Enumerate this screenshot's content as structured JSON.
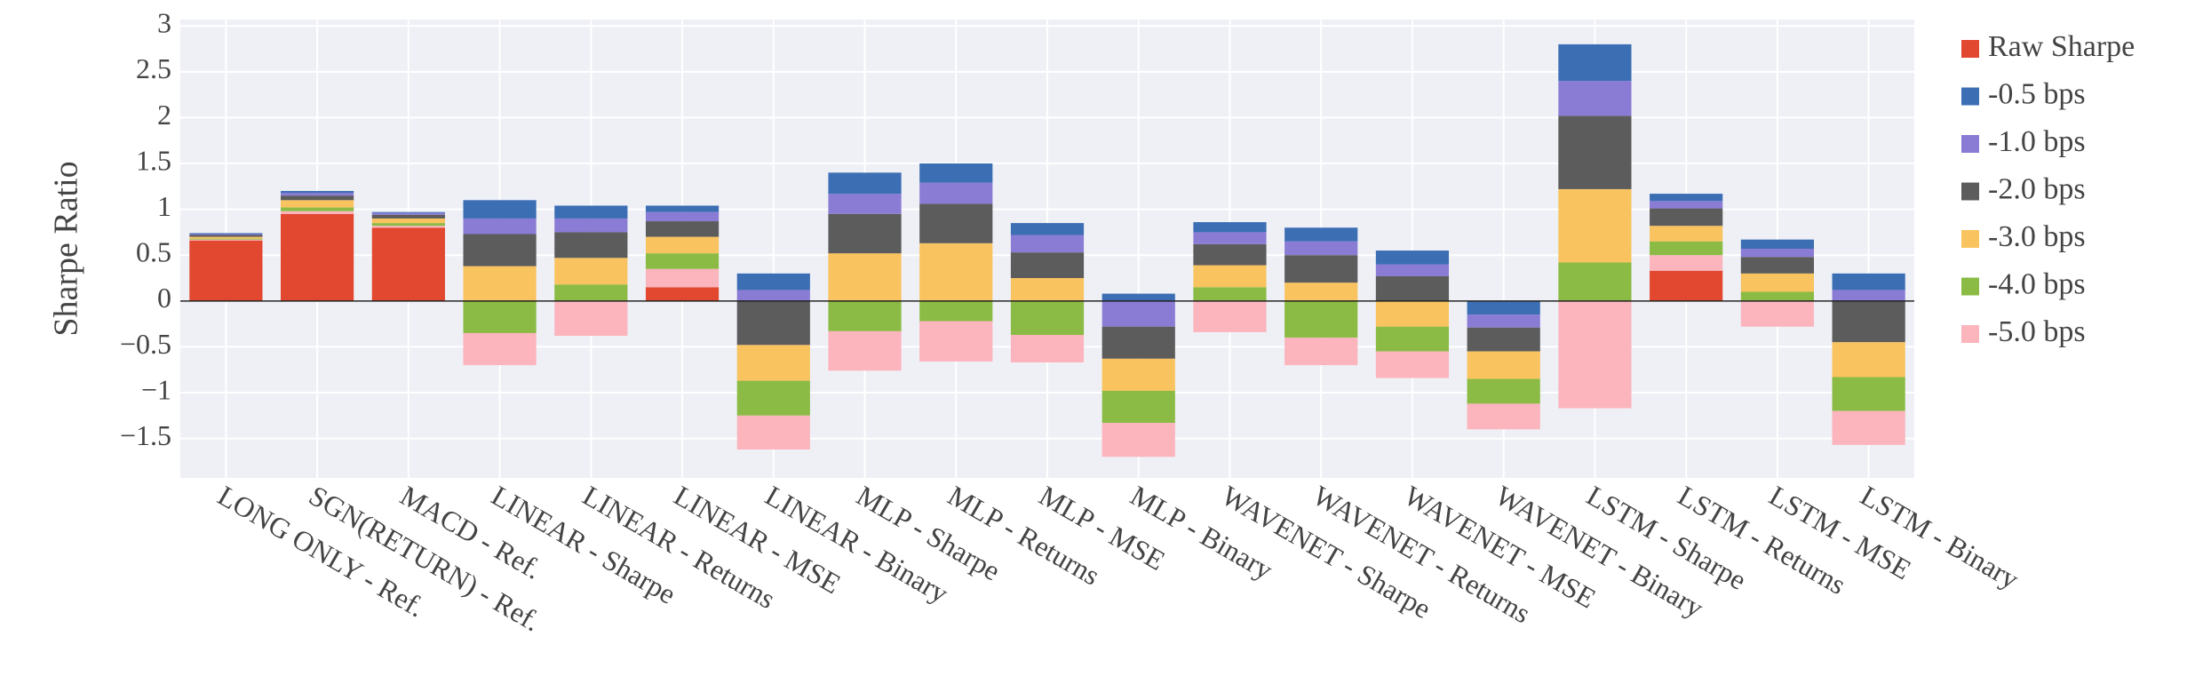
{
  "chart_data": {
    "type": "bar",
    "y_label": "Sharpe Ratio",
    "categories": [
      "LONG ONLY - Ref.",
      "SGN(RETURN) - Ref.",
      "MACD - Ref.",
      "LINEAR - Sharpe",
      "LINEAR - Returns",
      "LINEAR - MSE",
      "LINEAR - Binary",
      "MLP - Sharpe",
      "MLP - Returns",
      "MLP - MSE",
      "MLP - Binary",
      "WAVENET - Sharpe",
      "WAVENET - Returns",
      "WAVENET - MSE",
      "WAVENET - Binary",
      "LSTM - Sharpe",
      "LSTM - Returns",
      "LSTM - MSE",
      "LSTM - Binary"
    ],
    "series": [
      {
        "name": "Raw Sharpe",
        "color": "#e2472f",
        "values": [
          0.66,
          0.95,
          0.8,
          0,
          0,
          0.15,
          0,
          0,
          0,
          0,
          0,
          0,
          0,
          0,
          0,
          0,
          0.33,
          0,
          0
        ]
      },
      {
        "name": "-0.5 bps",
        "color": "#3c6eb4",
        "values": [
          0.01,
          0.02,
          0.01,
          0.2,
          0.14,
          0.07,
          0.18,
          0.23,
          0.21,
          0.13,
          0.08,
          0.11,
          0.15,
          0.15,
          -0.15,
          0.4,
          0.08,
          0.1,
          0.18
        ]
      },
      {
        "name": "-1.0 bps",
        "color": "#8a7bd4",
        "values": [
          0.01,
          0.03,
          0.02,
          0.17,
          0.15,
          0.1,
          0.12,
          0.22,
          0.23,
          0.19,
          -0.28,
          0.13,
          0.15,
          0.13,
          -0.14,
          0.38,
          0.08,
          0.09,
          0.12
        ]
      },
      {
        "name": "-2.0 bps",
        "color": "#5c5c5c",
        "values": [
          0.02,
          0.05,
          0.04,
          0.35,
          0.28,
          0.17,
          -0.48,
          0.43,
          0.43,
          0.28,
          -0.35,
          0.23,
          0.3,
          0.27,
          -0.26,
          0.8,
          0.19,
          0.18,
          -0.45
        ]
      },
      {
        "name": "-3.0 bps",
        "color": "#f9c35f",
        "values": [
          0.02,
          0.08,
          0.05,
          0.38,
          0.29,
          0.18,
          -0.39,
          0.52,
          0.63,
          0.25,
          -0.35,
          0.24,
          0.2,
          -0.28,
          -0.3,
          0.8,
          0.17,
          0.2,
          -0.38
        ]
      },
      {
        "name": "-4.0 bps",
        "color": "#8bbb44",
        "values": [
          0.01,
          0.04,
          0.03,
          -0.35,
          0.18,
          0.17,
          -0.38,
          -0.33,
          -0.22,
          -0.37,
          -0.35,
          0.15,
          -0.4,
          -0.27,
          -0.27,
          0.42,
          0.15,
          0.1,
          -0.37
        ]
      },
      {
        "name": "-5.0 bps",
        "color": "#fcb4bd",
        "values": [
          0.01,
          0.03,
          0.02,
          -0.35,
          -0.38,
          0.2,
          -0.37,
          -0.43,
          -0.44,
          -0.3,
          -0.37,
          -0.34,
          -0.3,
          -0.29,
          -0.28,
          -1.17,
          0.17,
          -0.28,
          -0.37
        ]
      }
    ],
    "ylim": [
      -1.93,
      3.07
    ],
    "yticks": [
      {
        "value": -1.5,
        "label": "−1.5"
      },
      {
        "value": -1,
        "label": "−1"
      },
      {
        "value": -0.5,
        "label": "−0.5"
      },
      0,
      0.5,
      1,
      1.5,
      2,
      2.5,
      3
    ],
    "grid": true,
    "plot_background": "#eef0f6",
    "legend": "right"
  }
}
